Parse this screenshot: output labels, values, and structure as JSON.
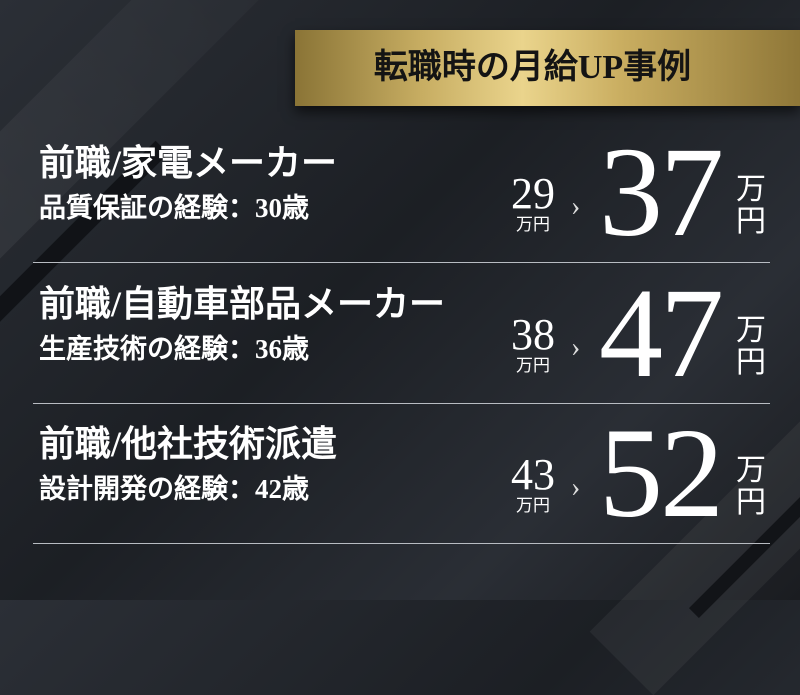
{
  "heading": "転職時の月給UP事例",
  "colors": {
    "background": "#202329",
    "gold": "#d9bf72",
    "text": "#ffffff"
  },
  "cases": [
    {
      "title": "前職/家電メーカー",
      "detail": "品質保証の経験：30歳",
      "before": "29",
      "before_unit": "万円",
      "after": "37",
      "after_unit_1": "万",
      "after_unit_2": "円"
    },
    {
      "title": "前職/自動車部品メーカー",
      "detail": "生産技術の経験：36歳",
      "before": "38",
      "before_unit": "万円",
      "after": "47",
      "after_unit_1": "万",
      "after_unit_2": "円"
    },
    {
      "title": "前職/他社技術派遣",
      "detail": "設計開発の経験：42歳",
      "before": "43",
      "before_unit": "万円",
      "after": "52",
      "after_unit_1": "万",
      "after_unit_2": "円"
    }
  ],
  "arrow_icon": "chevron-right-icon",
  "arrow_glyph": "＞"
}
